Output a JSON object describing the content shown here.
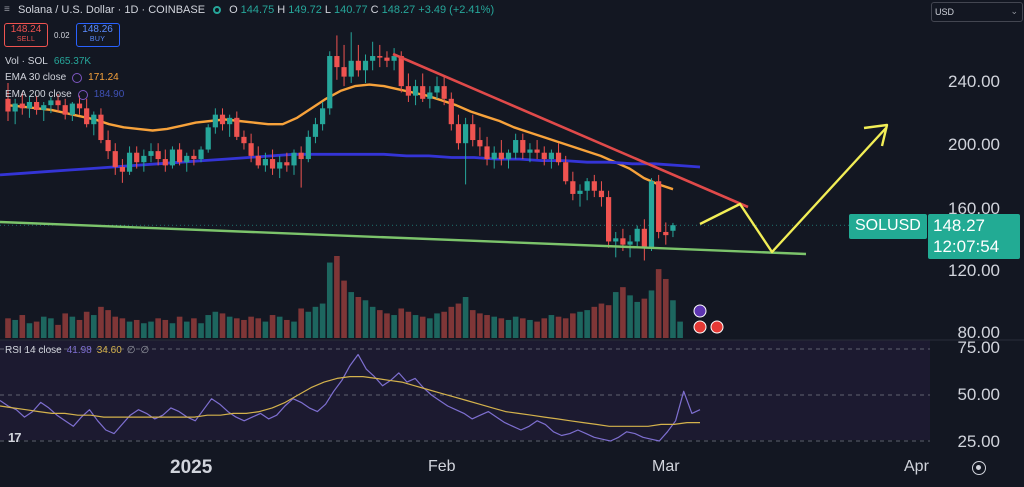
{
  "header": {
    "title": "Solana / U.S. Dollar · 1D · COINBASE",
    "ohlc": [
      {
        "k": "O",
        "v": "144.75"
      },
      {
        "k": "H",
        "v": "149.72"
      },
      {
        "k": "L",
        "v": "140.77"
      },
      {
        "k": "C",
        "v": "148.27"
      }
    ],
    "change": "+3.49 (+2.41%)"
  },
  "trade": {
    "sell_price": "148.24",
    "sell_label": "SELL",
    "spread": "0.02",
    "buy_price": "148.26",
    "buy_label": "BUY"
  },
  "legend": {
    "vol": {
      "label": "Vol · SOL",
      "value": "665.37K"
    },
    "ema30": {
      "label": "EMA 30 close",
      "value": "171.24"
    },
    "ema200": {
      "label": "EMA 200 close",
      "value": "184.90"
    }
  },
  "currency_select": {
    "value": "USD"
  },
  "price_tag": {
    "symbol": "SOLUSD",
    "price": "148.27",
    "countdown": "12:07:54"
  },
  "rsi": {
    "label": "RSI 14 close",
    "value": "41.98",
    "ma": "34.60",
    "extra1": "∅",
    "extra2": "∅"
  },
  "colors": {
    "bg": "#131722",
    "up": "#26a69a",
    "down": "#ef5350",
    "ema30": "#f7a23b",
    "ema200": "#3434d6",
    "trend_red": "#e04a4a",
    "support_green": "#7cc46b",
    "projection": "#f2ee56",
    "rsi_line": "#7e6fd0",
    "rsi_ma": "#d4b24c"
  },
  "icons": [
    "tradingview-logo-icon",
    "target-icon",
    "chevron-down-icon",
    "indicator-settings-icon",
    "live-dot-icon"
  ],
  "chart_data": [
    {
      "type": "candlestick",
      "title": "Solana / U.S. Dollar · 1D · COINBASE",
      "x_tick_labels": [
        "2025",
        "Feb",
        "Mar",
        "Apr"
      ],
      "y_tick_labels": [
        "240.00",
        "200.00",
        "160.00",
        "120.00",
        "80.00"
      ],
      "ylim": [
        80,
        280
      ],
      "candles": [
        {
          "o": 228,
          "h": 238,
          "l": 214,
          "c": 220
        },
        {
          "o": 220,
          "h": 228,
          "l": 212,
          "c": 225
        },
        {
          "o": 225,
          "h": 232,
          "l": 218,
          "c": 222
        },
        {
          "o": 222,
          "h": 230,
          "l": 216,
          "c": 226
        },
        {
          "o": 226,
          "h": 230,
          "l": 218,
          "c": 221
        },
        {
          "o": 221,
          "h": 226,
          "l": 214,
          "c": 224
        },
        {
          "o": 224,
          "h": 229,
          "l": 219,
          "c": 227
        },
        {
          "o": 227,
          "h": 231,
          "l": 220,
          "c": 224
        },
        {
          "o": 224,
          "h": 228,
          "l": 215,
          "c": 218
        },
        {
          "o": 218,
          "h": 226,
          "l": 214,
          "c": 225
        },
        {
          "o": 225,
          "h": 230,
          "l": 218,
          "c": 222
        },
        {
          "o": 222,
          "h": 228,
          "l": 210,
          "c": 212
        },
        {
          "o": 212,
          "h": 220,
          "l": 205,
          "c": 218
        },
        {
          "o": 218,
          "h": 222,
          "l": 200,
          "c": 202
        },
        {
          "o": 202,
          "h": 208,
          "l": 190,
          "c": 195
        },
        {
          "o": 195,
          "h": 200,
          "l": 180,
          "c": 185
        },
        {
          "o": 185,
          "h": 190,
          "l": 175,
          "c": 182
        },
        {
          "o": 182,
          "h": 198,
          "l": 180,
          "c": 194
        },
        {
          "o": 194,
          "h": 198,
          "l": 184,
          "c": 188
        },
        {
          "o": 188,
          "h": 196,
          "l": 182,
          "c": 192
        },
        {
          "o": 192,
          "h": 200,
          "l": 188,
          "c": 195
        },
        {
          "o": 195,
          "h": 200,
          "l": 186,
          "c": 190
        },
        {
          "o": 190,
          "h": 196,
          "l": 182,
          "c": 186
        },
        {
          "o": 186,
          "h": 198,
          "l": 184,
          "c": 196
        },
        {
          "o": 196,
          "h": 200,
          "l": 186,
          "c": 188
        },
        {
          "o": 188,
          "h": 194,
          "l": 182,
          "c": 192
        },
        {
          "o": 192,
          "h": 196,
          "l": 186,
          "c": 190
        },
        {
          "o": 190,
          "h": 198,
          "l": 188,
          "c": 196
        },
        {
          "o": 196,
          "h": 212,
          "l": 194,
          "c": 210
        },
        {
          "o": 210,
          "h": 222,
          "l": 206,
          "c": 218
        },
        {
          "o": 218,
          "h": 222,
          "l": 208,
          "c": 212
        },
        {
          "o": 212,
          "h": 218,
          "l": 204,
          "c": 216
        },
        {
          "o": 216,
          "h": 220,
          "l": 202,
          "c": 204
        },
        {
          "o": 204,
          "h": 208,
          "l": 196,
          "c": 200
        },
        {
          "o": 200,
          "h": 206,
          "l": 188,
          "c": 192
        },
        {
          "o": 192,
          "h": 198,
          "l": 184,
          "c": 186
        },
        {
          "o": 186,
          "h": 194,
          "l": 182,
          "c": 190
        },
        {
          "o": 190,
          "h": 196,
          "l": 180,
          "c": 184
        },
        {
          "o": 184,
          "h": 192,
          "l": 178,
          "c": 188
        },
        {
          "o": 188,
          "h": 194,
          "l": 182,
          "c": 186
        },
        {
          "o": 186,
          "h": 196,
          "l": 180,
          "c": 194
        },
        {
          "o": 194,
          "h": 198,
          "l": 172,
          "c": 190
        },
        {
          "o": 190,
          "h": 208,
          "l": 188,
          "c": 204
        },
        {
          "o": 204,
          "h": 216,
          "l": 200,
          "c": 212
        },
        {
          "o": 212,
          "h": 226,
          "l": 208,
          "c": 222
        },
        {
          "o": 222,
          "h": 258,
          "l": 218,
          "c": 255
        },
        {
          "o": 255,
          "h": 268,
          "l": 240,
          "c": 248
        },
        {
          "o": 248,
          "h": 262,
          "l": 236,
          "c": 242
        },
        {
          "o": 242,
          "h": 270,
          "l": 238,
          "c": 252
        },
        {
          "o": 252,
          "h": 262,
          "l": 242,
          "c": 246
        },
        {
          "o": 246,
          "h": 256,
          "l": 238,
          "c": 252
        },
        {
          "o": 252,
          "h": 264,
          "l": 246,
          "c": 255
        },
        {
          "o": 255,
          "h": 262,
          "l": 248,
          "c": 254
        },
        {
          "o": 254,
          "h": 258,
          "l": 248,
          "c": 252
        },
        {
          "o": 252,
          "h": 260,
          "l": 246,
          "c": 255
        },
        {
          "o": 255,
          "h": 258,
          "l": 232,
          "c": 236
        },
        {
          "o": 236,
          "h": 244,
          "l": 226,
          "c": 230
        },
        {
          "o": 230,
          "h": 240,
          "l": 224,
          "c": 236
        },
        {
          "o": 236,
          "h": 244,
          "l": 226,
          "c": 228
        },
        {
          "o": 228,
          "h": 236,
          "l": 222,
          "c": 232
        },
        {
          "o": 232,
          "h": 242,
          "l": 228,
          "c": 236
        },
        {
          "o": 236,
          "h": 242,
          "l": 224,
          "c": 228
        },
        {
          "o": 228,
          "h": 232,
          "l": 208,
          "c": 212
        },
        {
          "o": 212,
          "h": 218,
          "l": 196,
          "c": 200
        },
        {
          "o": 200,
          "h": 216,
          "l": 174,
          "c": 212
        },
        {
          "o": 212,
          "h": 218,
          "l": 198,
          "c": 202
        },
        {
          "o": 202,
          "h": 210,
          "l": 192,
          "c": 198
        },
        {
          "o": 198,
          "h": 204,
          "l": 186,
          "c": 190
        },
        {
          "o": 190,
          "h": 198,
          "l": 184,
          "c": 194
        },
        {
          "o": 194,
          "h": 202,
          "l": 186,
          "c": 190
        },
        {
          "o": 190,
          "h": 196,
          "l": 184,
          "c": 194
        },
        {
          "o": 194,
          "h": 206,
          "l": 190,
          "c": 202
        },
        {
          "o": 202,
          "h": 206,
          "l": 190,
          "c": 194
        },
        {
          "o": 194,
          "h": 200,
          "l": 188,
          "c": 196
        },
        {
          "o": 196,
          "h": 202,
          "l": 190,
          "c": 194
        },
        {
          "o": 194,
          "h": 198,
          "l": 186,
          "c": 190
        },
        {
          "o": 190,
          "h": 196,
          "l": 184,
          "c": 194
        },
        {
          "o": 194,
          "h": 200,
          "l": 186,
          "c": 188
        },
        {
          "o": 188,
          "h": 192,
          "l": 174,
          "c": 176
        },
        {
          "o": 176,
          "h": 182,
          "l": 164,
          "c": 168
        },
        {
          "o": 168,
          "h": 174,
          "l": 160,
          "c": 170
        },
        {
          "o": 170,
          "h": 178,
          "l": 164,
          "c": 176
        },
        {
          "o": 176,
          "h": 180,
          "l": 166,
          "c": 170
        },
        {
          "o": 170,
          "h": 176,
          "l": 160,
          "c": 166
        },
        {
          "o": 166,
          "h": 170,
          "l": 134,
          "c": 138
        },
        {
          "o": 138,
          "h": 144,
          "l": 128,
          "c": 140
        },
        {
          "o": 140,
          "h": 146,
          "l": 132,
          "c": 136
        },
        {
          "o": 136,
          "h": 142,
          "l": 128,
          "c": 138
        },
        {
          "o": 138,
          "h": 148,
          "l": 134,
          "c": 146
        },
        {
          "o": 146,
          "h": 152,
          "l": 126,
          "c": 134
        },
        {
          "o": 134,
          "h": 178,
          "l": 132,
          "c": 176
        },
        {
          "o": 176,
          "h": 180,
          "l": 140,
          "c": 144
        },
        {
          "o": 144,
          "h": 150,
          "l": 136,
          "c": 142
        },
        {
          "o": 144.75,
          "h": 149.72,
          "l": 140.77,
          "c": 148.27
        }
      ],
      "ema30": [
        224,
        223,
        222,
        221,
        219,
        217,
        215,
        212,
        210,
        209,
        208,
        209,
        211,
        213,
        214,
        215,
        214,
        213,
        212,
        212,
        216,
        222,
        228,
        233,
        236,
        237,
        236,
        234,
        232,
        230,
        227,
        224,
        220,
        217,
        214,
        210,
        207,
        204,
        201,
        198,
        195,
        192,
        188,
        184,
        178,
        174,
        171
      ],
      "ema200": [
        180,
        181,
        182,
        183,
        184,
        185,
        186,
        187,
        188,
        189,
        190,
        191,
        192,
        193,
        193,
        193,
        193,
        193,
        192,
        192,
        191,
        191,
        190,
        190,
        189,
        189,
        188,
        188,
        187,
        187,
        186,
        185
      ],
      "annotations": [
        "descending trendline",
        "support line",
        "projected path"
      ]
    },
    {
      "type": "bar",
      "title": "Vol · SOL",
      "values": [
        1.2,
        1.1,
        1.4,
        0.9,
        1.0,
        1.3,
        1.2,
        0.8,
        1.5,
        1.3,
        1.1,
        1.6,
        1.4,
        1.9,
        1.7,
        1.3,
        1.2,
        1.0,
        1.1,
        0.9,
        1.0,
        1.2,
        1.1,
        0.9,
        1.3,
        1.0,
        1.2,
        0.9,
        1.4,
        1.6,
        1.5,
        1.3,
        1.2,
        1.1,
        1.3,
        1.2,
        1.0,
        1.4,
        1.3,
        1.1,
        1.0,
        1.8,
        1.6,
        1.9,
        2.1,
        4.6,
        5.0,
        3.5,
        2.8,
        2.5,
        2.3,
        1.9,
        1.7,
        1.5,
        1.4,
        1.8,
        1.6,
        1.4,
        1.3,
        1.2,
        1.5,
        1.6,
        1.9,
        2.1,
        2.5,
        1.7,
        1.5,
        1.4,
        1.3,
        1.2,
        1.1,
        1.3,
        1.2,
        1.1,
        1.0,
        1.2,
        1.4,
        1.3,
        1.2,
        1.5,
        1.6,
        1.7,
        1.9,
        2.1,
        2.0,
        2.8,
        3.1,
        2.6,
        2.2,
        2.4,
        2.9,
        4.2,
        3.6,
        2.3,
        1.0
      ]
    },
    {
      "type": "line",
      "title": "RSI 14 close",
      "y_tick_labels": [
        "75.00",
        "50.00",
        "25.00"
      ],
      "ylim": [
        20,
        78
      ],
      "series": [
        {
          "name": "RSI",
          "values": [
            47,
            44,
            42,
            38,
            41,
            46,
            43,
            39,
            36,
            33,
            38,
            42,
            36,
            31,
            29,
            34,
            39,
            42,
            40,
            37,
            39,
            43,
            41,
            38,
            36,
            42,
            48,
            45,
            41,
            38,
            36,
            38,
            40,
            37,
            39,
            44,
            48,
            46,
            43,
            41,
            45,
            52,
            58,
            66,
            72,
            64,
            60,
            55,
            58,
            62,
            57,
            59,
            54,
            50,
            47,
            44,
            42,
            40,
            37,
            39,
            41,
            38,
            35,
            33,
            31,
            33,
            36,
            34,
            30,
            28,
            29,
            31,
            29,
            27,
            26,
            25,
            27,
            30,
            29,
            27,
            26,
            25,
            30,
            36,
            52,
            40,
            42
          ]
        },
        {
          "name": "RSI MA",
          "values": [
            44,
            43,
            42,
            41,
            40,
            40,
            39,
            39,
            38,
            38,
            38,
            38,
            38,
            38,
            38,
            38,
            39,
            39,
            40,
            40,
            41,
            43,
            46,
            50,
            54,
            57,
            59,
            60,
            60,
            59,
            58,
            57,
            55,
            53,
            51,
            49,
            47,
            45,
            43,
            41,
            40,
            39,
            38,
            37,
            36,
            35,
            34,
            33,
            33,
            33,
            33,
            34,
            34,
            35,
            35
          ]
        }
      ]
    }
  ]
}
